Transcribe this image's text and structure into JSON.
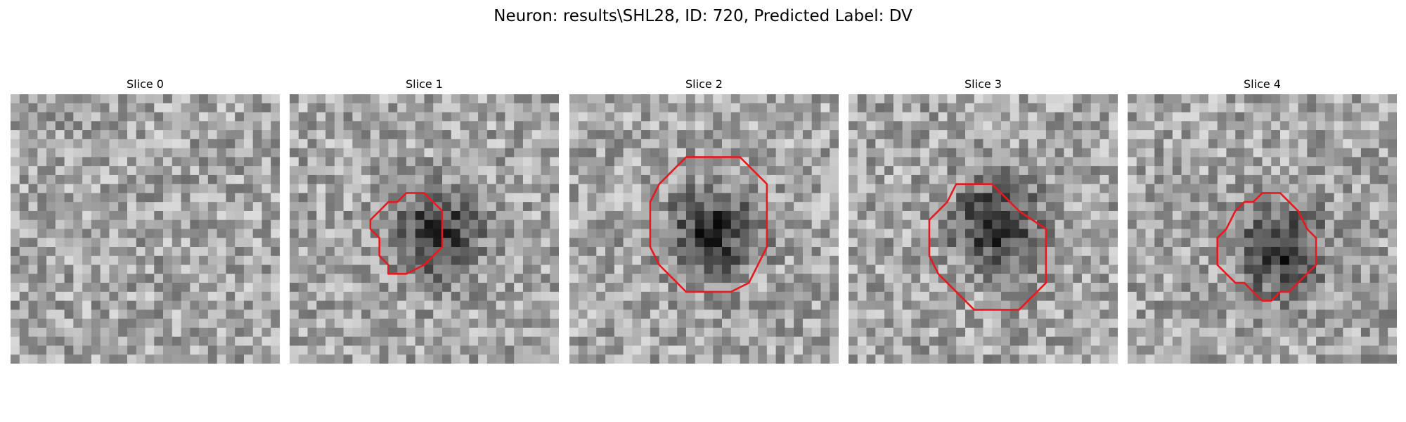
{
  "figure": {
    "suptitle": "Neuron: results\\SHL28, ID: 720, Predicted Label: DV"
  },
  "chart_data": {
    "type": "heatmap",
    "colormap": "gray",
    "grid": false,
    "outline_color": "#e8191e",
    "grid_size": 30,
    "panels": [
      {
        "title": "Slice 0",
        "dark_center": null,
        "contour": []
      },
      {
        "title": "Slice 1",
        "dark_center": [
          16,
          15
        ],
        "contour": [
          [
            13,
            11
          ],
          [
            15,
            11
          ],
          [
            16,
            12
          ],
          [
            17,
            13
          ],
          [
            17,
            17
          ],
          [
            16,
            18
          ],
          [
            15,
            19
          ],
          [
            13,
            20
          ],
          [
            12,
            20
          ],
          [
            11,
            20
          ],
          [
            11,
            19
          ],
          [
            10,
            18
          ],
          [
            10,
            17
          ],
          [
            10,
            16
          ],
          [
            9,
            15
          ],
          [
            9,
            14
          ],
          [
            10,
            13
          ],
          [
            11,
            12
          ],
          [
            12,
            12
          ]
        ]
      },
      {
        "title": "Slice 2",
        "dark_center": [
          15.5,
          15
        ],
        "contour": [
          [
            13,
            7
          ],
          [
            19,
            7
          ],
          [
            20,
            8
          ],
          [
            21,
            9
          ],
          [
            22,
            10
          ],
          [
            22,
            17
          ],
          [
            21,
            19
          ],
          [
            20,
            21
          ],
          [
            18,
            22
          ],
          [
            13,
            22
          ],
          [
            11,
            20
          ],
          [
            10,
            19
          ],
          [
            9,
            17
          ],
          [
            9,
            12
          ],
          [
            10,
            10
          ],
          [
            11,
            9
          ],
          [
            12,
            8
          ]
        ]
      },
      {
        "title": "Slice 3",
        "dark_center": [
          16,
          14
        ],
        "contour": [
          [
            12,
            10
          ],
          [
            16,
            10
          ],
          [
            17,
            11
          ],
          [
            18,
            12
          ],
          [
            19,
            13
          ],
          [
            22,
            15
          ],
          [
            22,
            21
          ],
          [
            20,
            23
          ],
          [
            19,
            24
          ],
          [
            14,
            24
          ],
          [
            13,
            23
          ],
          [
            11,
            21
          ],
          [
            10,
            20
          ],
          [
            9,
            18
          ],
          [
            9,
            14
          ],
          [
            10,
            13
          ],
          [
            11,
            12
          ]
        ]
      },
      {
        "title": "Slice 4",
        "dark_center": [
          16.5,
          17
        ],
        "contour": [
          [
            15,
            11
          ],
          [
            17,
            11
          ],
          [
            18,
            12
          ],
          [
            19,
            13
          ],
          [
            20,
            15
          ],
          [
            21,
            16
          ],
          [
            21,
            19
          ],
          [
            20,
            20
          ],
          [
            19,
            21
          ],
          [
            18,
            22
          ],
          [
            17,
            22
          ],
          [
            16,
            23
          ],
          [
            15,
            23
          ],
          [
            14,
            22
          ],
          [
            13,
            21
          ],
          [
            12,
            21
          ],
          [
            11,
            20
          ],
          [
            10,
            19
          ],
          [
            10,
            16
          ],
          [
            11,
            15
          ],
          [
            12,
            13
          ],
          [
            13,
            12
          ],
          [
            14,
            12
          ]
        ]
      }
    ]
  }
}
